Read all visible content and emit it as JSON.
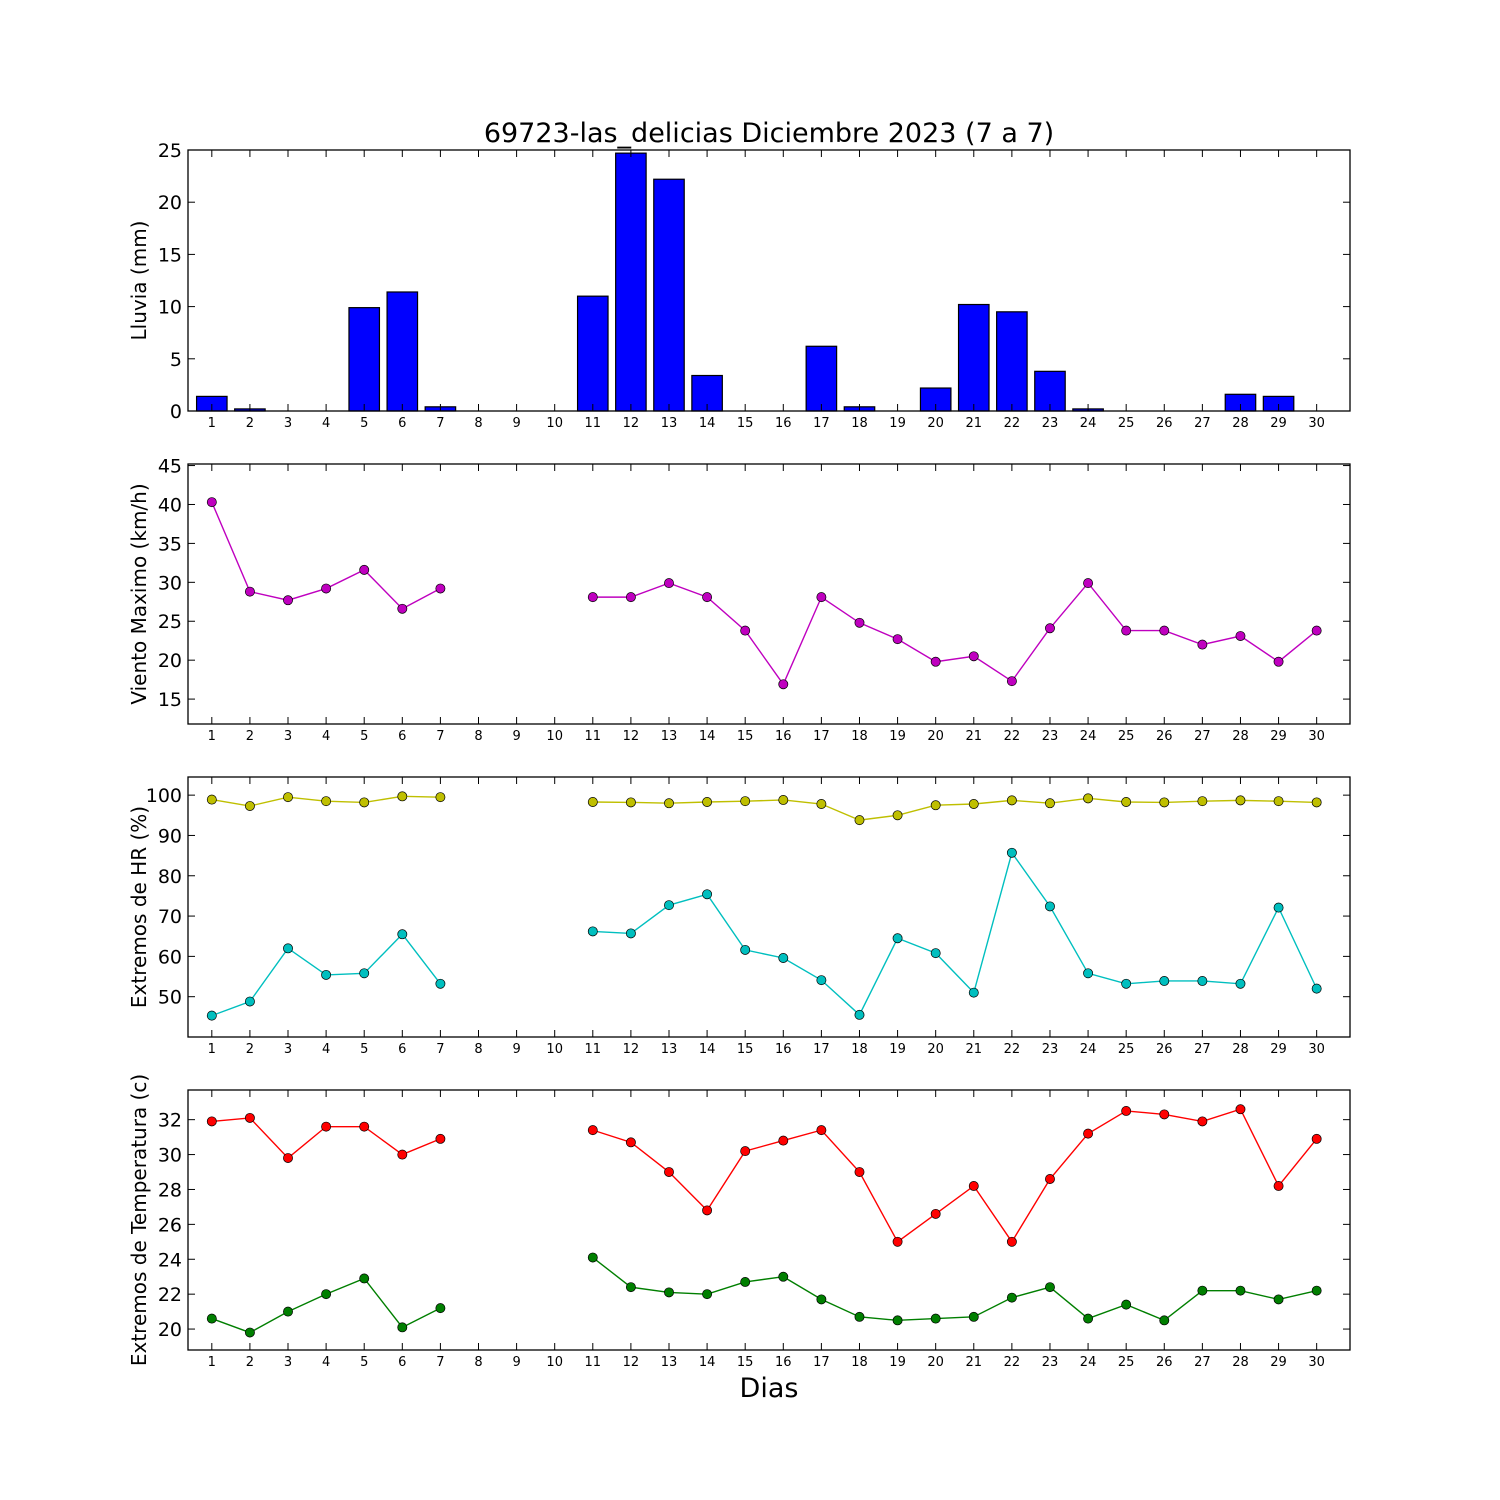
{
  "title": "69723-las_delicias Diciembre 2023  (7 a 7)",
  "xlabel": "Dias",
  "colors": {
    "rain": "#0000ff",
    "wind": "#bf00bf",
    "hr_max": "#bfbf00",
    "hr_min": "#00bfbf",
    "temp_max": "#ff0000",
    "temp_min": "#007f00"
  },
  "chart_data": [
    {
      "type": "bar",
      "ylabel": "Lluvia (mm)",
      "ylim": [
        0,
        25
      ],
      "yticks": [
        0,
        5,
        10,
        15,
        20,
        25
      ],
      "categories": [
        1,
        2,
        3,
        4,
        5,
        6,
        7,
        8,
        9,
        10,
        11,
        12,
        13,
        14,
        15,
        16,
        17,
        18,
        19,
        20,
        21,
        22,
        23,
        24,
        25,
        26,
        27,
        28,
        29,
        30
      ],
      "series": [
        {
          "color_key": "rain",
          "values": [
            1.4,
            0.2,
            0,
            0,
            9.9,
            11.4,
            0.4,
            0,
            0,
            0,
            11.0,
            24.7,
            22.2,
            3.4,
            0,
            0,
            6.2,
            0.4,
            0,
            2.2,
            10.2,
            9.5,
            3.8,
            0.2,
            0,
            0,
            0,
            1.6,
            1.4,
            0
          ]
        }
      ]
    },
    {
      "type": "line",
      "ylabel": "Viento Maximo (km/h)",
      "ylim": [
        11.8,
        45.2
      ],
      "yticks": [
        15,
        20,
        25,
        30,
        35,
        40,
        45
      ],
      "categories": [
        1,
        2,
        3,
        4,
        5,
        6,
        7,
        8,
        9,
        10,
        11,
        12,
        13,
        14,
        15,
        16,
        17,
        18,
        19,
        20,
        21,
        22,
        23,
        24,
        25,
        26,
        27,
        28,
        29,
        30
      ],
      "series": [
        {
          "color_key": "wind",
          "values": [
            40.3,
            28.8,
            27.7,
            29.2,
            31.6,
            26.6,
            29.2,
            null,
            null,
            null,
            28.1,
            28.1,
            29.9,
            28.1,
            23.8,
            16.9,
            28.1,
            24.8,
            22.7,
            19.8,
            20.5,
            17.3,
            24.1,
            29.9,
            23.8,
            23.8,
            22.0,
            23.1,
            19.8,
            23.8
          ]
        }
      ]
    },
    {
      "type": "line",
      "ylabel": "Extremos de HR (%)",
      "ylim": [
        40,
        104.5
      ],
      "yticks": [
        50,
        60,
        70,
        80,
        90,
        100
      ],
      "categories": [
        1,
        2,
        3,
        4,
        5,
        6,
        7,
        8,
        9,
        10,
        11,
        12,
        13,
        14,
        15,
        16,
        17,
        18,
        19,
        20,
        21,
        22,
        23,
        24,
        25,
        26,
        27,
        28,
        29,
        30
      ],
      "series": [
        {
          "color_key": "hr_max",
          "values": [
            98.9,
            97.3,
            99.5,
            98.5,
            98.2,
            99.7,
            99.5,
            null,
            null,
            null,
            98.3,
            98.2,
            98.0,
            98.3,
            98.5,
            98.8,
            97.8,
            93.8,
            95.0,
            97.5,
            97.8,
            98.7,
            98.0,
            99.2,
            98.3,
            98.2,
            98.5,
            98.7,
            98.5,
            98.2
          ]
        },
        {
          "color_key": "hr_min",
          "values": [
            45.3,
            48.8,
            62.0,
            55.4,
            55.8,
            65.5,
            53.2,
            null,
            null,
            null,
            66.2,
            65.7,
            72.7,
            75.4,
            61.6,
            59.6,
            54.1,
            45.5,
            64.5,
            60.8,
            51.0,
            85.7,
            72.4,
            55.8,
            53.2,
            53.9,
            53.9,
            53.2,
            72.1,
            52.0
          ]
        }
      ]
    },
    {
      "type": "line",
      "ylabel": "Extremos de Temperatura (c)",
      "ylim": [
        18.8,
        33.7
      ],
      "yticks": [
        20,
        22,
        24,
        26,
        28,
        30,
        32
      ],
      "categories": [
        1,
        2,
        3,
        4,
        5,
        6,
        7,
        8,
        9,
        10,
        11,
        12,
        13,
        14,
        15,
        16,
        17,
        18,
        19,
        20,
        21,
        22,
        23,
        24,
        25,
        26,
        27,
        28,
        29,
        30
      ],
      "series": [
        {
          "color_key": "temp_max",
          "values": [
            31.9,
            32.1,
            29.8,
            31.6,
            31.6,
            30.0,
            30.9,
            null,
            null,
            null,
            31.4,
            30.7,
            29.0,
            26.8,
            30.2,
            30.8,
            31.4,
            29.0,
            25.0,
            26.6,
            28.2,
            25.0,
            28.6,
            31.2,
            32.5,
            32.3,
            31.9,
            32.6,
            28.2,
            30.9
          ]
        },
        {
          "color_key": "temp_min",
          "values": [
            20.6,
            19.8,
            21.0,
            22.0,
            22.9,
            20.1,
            21.2,
            null,
            null,
            null,
            24.1,
            22.4,
            22.1,
            22.0,
            22.7,
            23.0,
            21.7,
            20.7,
            20.5,
            20.6,
            20.7,
            21.8,
            22.4,
            20.6,
            21.4,
            20.5,
            22.2,
            22.2,
            21.7,
            22.2
          ]
        }
      ]
    }
  ]
}
